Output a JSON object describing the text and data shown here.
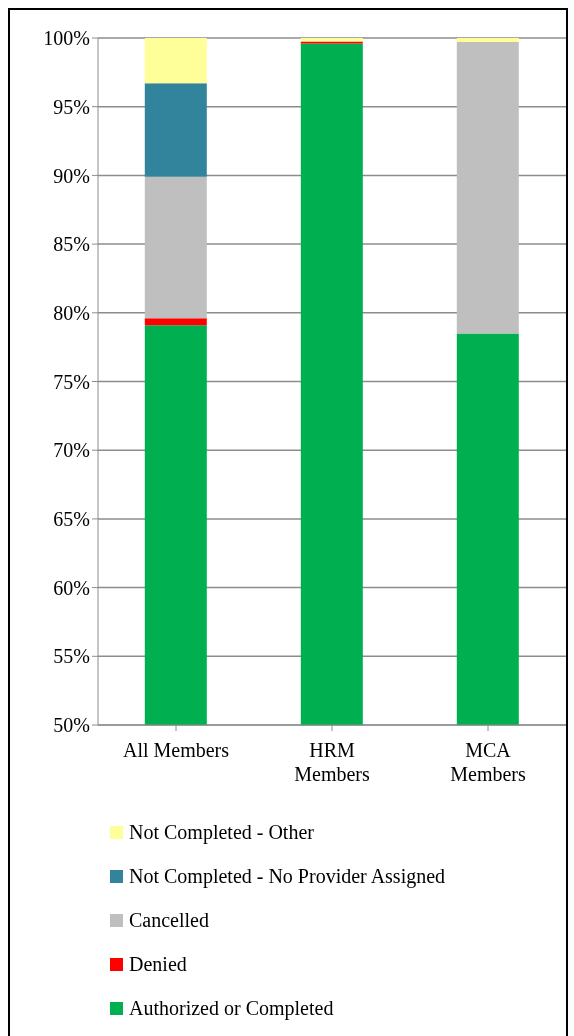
{
  "chart_data": {
    "type": "bar",
    "categories": [
      "All Members",
      "HRM Members",
      "MCA Members"
    ],
    "series": [
      {
        "name": "Authorized or Completed",
        "color": "#00b050",
        "values": [
          79.1,
          99.6,
          78.5
        ],
        "base": [
          0,
          0,
          0
        ]
      },
      {
        "name": "Denied",
        "color": "#ff0000",
        "values": [
          0.5,
          0.15,
          null
        ],
        "base": [
          79.1,
          99.6,
          null
        ]
      },
      {
        "name": "Cancelled",
        "color": "#bfbfbf",
        "values": [
          10.3,
          null,
          21.2
        ],
        "base": [
          79.6,
          null,
          78.5
        ]
      },
      {
        "name": "Not Completed - No Provider Assigned",
        "color": "#31849b",
        "values": [
          6.8,
          null,
          null
        ],
        "base": [
          89.9,
          null,
          null
        ]
      },
      {
        "name": "Not Completed - Other",
        "color": "#ffff99",
        "values": [
          3.3,
          0.25,
          0.3
        ],
        "base": [
          96.7,
          99.75,
          99.7
        ]
      }
    ],
    "ylim": [
      50,
      100
    ],
    "yticks": [
      {
        "value": 50,
        "label": "50%"
      },
      {
        "value": 55,
        "label": "55%"
      },
      {
        "value": 60,
        "label": "60%"
      },
      {
        "value": 65,
        "label": "65%"
      },
      {
        "value": 70,
        "label": "70%"
      },
      {
        "value": 75,
        "label": "75%"
      },
      {
        "value": 80,
        "label": "80%"
      },
      {
        "value": 85,
        "label": "85%"
      },
      {
        "value": 90,
        "label": "90%"
      },
      {
        "value": 95,
        "label": "95%"
      },
      {
        "value": 100,
        "label": "100%"
      }
    ],
    "grid": "y",
    "legend": "bottom"
  }
}
